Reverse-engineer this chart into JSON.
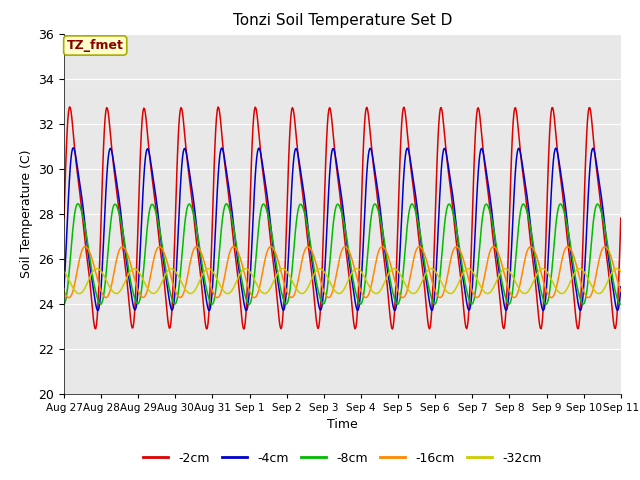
{
  "title": "Tonzi Soil Temperature Set D",
  "xlabel": "Time",
  "ylabel": "Soil Temperature (C)",
  "ylim": [
    20,
    36
  ],
  "n_days": 15,
  "annotation_text": "TZ_fmet",
  "annotation_color": "#8B0000",
  "annotation_bg": "#FFFFCC",
  "annotation_border": "#AAAA00",
  "bg_color": "#E8E8E8",
  "grid_color": "white",
  "series": [
    {
      "label": "-2cm",
      "color": "#DD0000",
      "amplitude": 5.8,
      "mean": 27.8,
      "phase": 0.0,
      "asymmetry": 0.35
    },
    {
      "label": "-4cm",
      "color": "#0000CC",
      "amplitude": 4.2,
      "mean": 27.3,
      "phase": 0.08,
      "asymmetry": 0.25
    },
    {
      "label": "-8cm",
      "color": "#00BB00",
      "amplitude": 2.5,
      "mean": 26.2,
      "phase": 0.18,
      "asymmetry": 0.15
    },
    {
      "label": "-16cm",
      "color": "#FF8800",
      "amplitude": 1.2,
      "mean": 25.4,
      "phase": 0.35,
      "asymmetry": 0.08
    },
    {
      "label": "-32cm",
      "color": "#CCCC00",
      "amplitude": 0.55,
      "mean": 25.0,
      "phase": 0.65,
      "asymmetry": 0.03
    }
  ],
  "xtick_labels": [
    "Aug 27",
    "Aug 28",
    "Aug 29",
    "Aug 30",
    "Aug 31",
    "Sep 1",
    "Sep 2",
    "Sep 3",
    "Sep 4",
    "Sep 5",
    "Sep 6",
    "Sep 7",
    "Sep 8",
    "Sep 9",
    "Sep 10",
    "Sep 11"
  ],
  "xtick_positions": [
    0,
    1,
    2,
    3,
    4,
    5,
    6,
    7,
    8,
    9,
    10,
    11,
    12,
    13,
    14,
    15
  ],
  "figsize": [
    6.4,
    4.8
  ],
  "dpi": 100
}
